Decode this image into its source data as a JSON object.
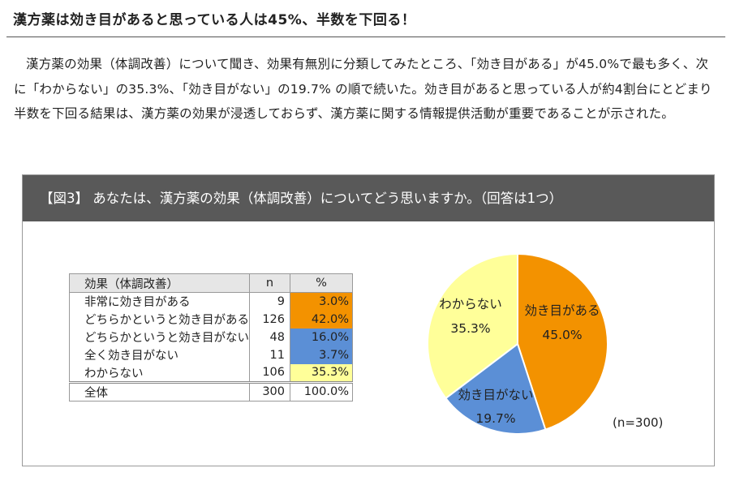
{
  "headline": "漢方薬は効き目があると思っている人は45%、半数を下回る！",
  "paragraph": "漢方薬の効果（体調改善）について聞き、効果有無別に分類してみたところ、「効き目がある」が45.0%で最も多く、次に「わからない」の35.3%、「効き目がない」の19.7% の順で続いた。効き目があると思っている人が約4割台にとどまり半数を下回る結果は、漢方薬の効果が浸透しておらず、漢方薬に関する情報提供活動が重要であることが示された。",
  "figure_title": "【図3】 あなたは、漢方薬の効果（体調改善）についてどう思いますか。（回答は1つ）",
  "table": {
    "headers": [
      "効果（体調改善）",
      "n",
      "%"
    ],
    "rows": [
      {
        "label": "非常に効き目がある",
        "n": "9",
        "pct": "3.0%",
        "color": "#f39200"
      },
      {
        "label": "どちらかというと効き目がある",
        "n": "126",
        "pct": "42.0%",
        "color": "#f39200"
      },
      {
        "label": "どちらかというと効き目がない",
        "n": "48",
        "pct": "16.0%",
        "color": "#5b8fd6"
      },
      {
        "label": "全く効き目がない",
        "n": "11",
        "pct": "3.7%",
        "color": "#5b8fd6"
      },
      {
        "label": "わからない",
        "n": "106",
        "pct": "35.3%",
        "color": "#ffff99"
      }
    ],
    "total": {
      "label": "全体",
      "n": "300",
      "pct": "100.0%"
    }
  },
  "chart_data": {
    "type": "pie",
    "slices": [
      {
        "label": "効き目がある",
        "value": 45.0,
        "value_label": "45.0%",
        "color": "#f39200"
      },
      {
        "label": "効き目がない",
        "value": 19.7,
        "value_label": "19.7%",
        "color": "#5b8fd6"
      },
      {
        "label": "わからない",
        "value": 35.3,
        "value_label": "35.3%",
        "color": "#ffff99"
      }
    ],
    "start_angle": "12 o'clock, clockwise",
    "note": "(n=300)"
  }
}
